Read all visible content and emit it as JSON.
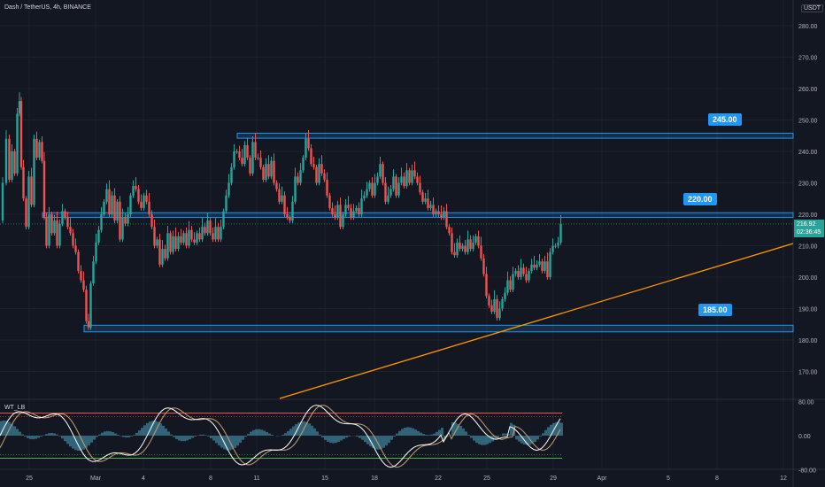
{
  "header": {
    "symbol": "Dash / TetherUS, 4h, BINANCE",
    "currency": "USDT",
    "indicator": "WT_LB"
  },
  "levels": {
    "l245": "245.00",
    "l220": "220.00",
    "l185": "185.00"
  },
  "current_price": {
    "value": "216.92",
    "countdown": "02:36:45"
  },
  "colors": {
    "background": "#131722",
    "up": "#26a69a",
    "down": "#ef5350",
    "zone": "#2196f3",
    "trendline": "#ff9800",
    "wt_line1": "#ffffff",
    "wt_line2": "#c8a070",
    "wt_hist": "#5bc0de"
  },
  "chart_data": {
    "type": "candlestick",
    "price_axis_ticks": [
      "280.00",
      "270.00",
      "260.00",
      "250.00",
      "240.00",
      "230.00",
      "220.00",
      "210.00",
      "200.00",
      "190.00",
      "180.00",
      "170.00"
    ],
    "osc_axis_ticks": [
      "80.00",
      "0.00",
      "-80.00"
    ],
    "time_axis_ticks": [
      "25",
      "Mar",
      "4",
      "8",
      "11",
      "15",
      "18",
      "22",
      "25",
      "29",
      "Apr",
      "5",
      "8",
      "12"
    ],
    "ylim": [
      162,
      284
    ],
    "levels": [
      245,
      220,
      185
    ],
    "trendline": "rising support line from the oscillator top-left to the right edge near 210",
    "close_path": [
      [
        0,
        218
      ],
      [
        4,
        230
      ],
      [
        8,
        244
      ],
      [
        11,
        231
      ],
      [
        14,
        240
      ],
      [
        17,
        233
      ],
      [
        20,
        252
      ],
      [
        22,
        256
      ],
      [
        24,
        235
      ],
      [
        27,
        225
      ],
      [
        30,
        216
      ],
      [
        33,
        232
      ],
      [
        36,
        223
      ],
      [
        39,
        244
      ],
      [
        42,
        238
      ],
      [
        45,
        243
      ],
      [
        48,
        237
      ],
      [
        50,
        219
      ],
      [
        53,
        210
      ],
      [
        56,
        220
      ],
      [
        59,
        214
      ],
      [
        62,
        218
      ],
      [
        65,
        210
      ],
      [
        68,
        217
      ],
      [
        71,
        221
      ],
      [
        74,
        219
      ],
      [
        77,
        216
      ],
      [
        80,
        214
      ],
      [
        83,
        210
      ],
      [
        86,
        208
      ],
      [
        89,
        202
      ],
      [
        92,
        199
      ],
      [
        95,
        196
      ],
      [
        98,
        186
      ],
      [
        100,
        184
      ],
      [
        103,
        198
      ],
      [
        106,
        205
      ],
      [
        109,
        211
      ],
      [
        112,
        215
      ],
      [
        115,
        220
      ],
      [
        118,
        224
      ],
      [
        121,
        228
      ],
      [
        124,
        220
      ],
      [
        127,
        226
      ],
      [
        130,
        218
      ],
      [
        133,
        224
      ],
      [
        136,
        212
      ],
      [
        139,
        219
      ],
      [
        142,
        217
      ],
      [
        145,
        220
      ],
      [
        148,
        226
      ],
      [
        151,
        229
      ],
      [
        154,
        228
      ],
      [
        157,
        224
      ],
      [
        160,
        222
      ],
      [
        163,
        226
      ],
      [
        166,
        224
      ],
      [
        169,
        220
      ],
      [
        172,
        216
      ],
      [
        175,
        210
      ],
      [
        178,
        212
      ],
      [
        181,
        204
      ],
      [
        184,
        209
      ],
      [
        187,
        206
      ],
      [
        190,
        214
      ],
      [
        193,
        208
      ],
      [
        196,
        213
      ],
      [
        199,
        209
      ],
      [
        202,
        213
      ],
      [
        205,
        211
      ],
      [
        208,
        214
      ],
      [
        211,
        210
      ],
      [
        214,
        215
      ],
      [
        217,
        212
      ],
      [
        220,
        211
      ],
      [
        223,
        214
      ],
      [
        226,
        212
      ],
      [
        229,
        216
      ],
      [
        232,
        214
      ],
      [
        235,
        218
      ],
      [
        238,
        214
      ],
      [
        241,
        212
      ],
      [
        244,
        216
      ],
      [
        247,
        212
      ],
      [
        250,
        216
      ],
      [
        253,
        221
      ],
      [
        256,
        226
      ],
      [
        259,
        230
      ],
      [
        262,
        235
      ],
      [
        265,
        240
      ],
      [
        268,
        240
      ],
      [
        271,
        238
      ],
      [
        274,
        236
      ],
      [
        277,
        242
      ],
      [
        280,
        238
      ],
      [
        283,
        233
      ],
      [
        286,
        243
      ],
      [
        289,
        238
      ],
      [
        292,
        238
      ],
      [
        295,
        235
      ],
      [
        298,
        231
      ],
      [
        301,
        236
      ],
      [
        304,
        232
      ],
      [
        307,
        237
      ],
      [
        310,
        230
      ],
      [
        313,
        228
      ],
      [
        316,
        224
      ],
      [
        319,
        226
      ],
      [
        322,
        220
      ],
      [
        325,
        219
      ],
      [
        328,
        218
      ],
      [
        331,
        224
      ],
      [
        334,
        232
      ],
      [
        337,
        230
      ],
      [
        340,
        234
      ],
      [
        343,
        238
      ],
      [
        346,
        244
      ],
      [
        349,
        241
      ],
      [
        352,
        236
      ],
      [
        355,
        235
      ],
      [
        358,
        230
      ],
      [
        361,
        236
      ],
      [
        364,
        233
      ],
      [
        367,
        231
      ],
      [
        370,
        226
      ],
      [
        373,
        222
      ],
      [
        376,
        220
      ],
      [
        379,
        219
      ],
      [
        382,
        223
      ],
      [
        385,
        216
      ],
      [
        388,
        220
      ],
      [
        391,
        223
      ],
      [
        394,
        222
      ],
      [
        397,
        219
      ],
      [
        400,
        221
      ],
      [
        403,
        222
      ],
      [
        406,
        220
      ],
      [
        409,
        225
      ],
      [
        412,
        226
      ],
      [
        415,
        228
      ],
      [
        418,
        230
      ],
      [
        421,
        226
      ],
      [
        424,
        230
      ],
      [
        427,
        232
      ],
      [
        430,
        236
      ],
      [
        433,
        230
      ],
      [
        436,
        224
      ],
      [
        439,
        226
      ],
      [
        442,
        228
      ],
      [
        445,
        232
      ],
      [
        448,
        226
      ],
      [
        451,
        230
      ],
      [
        454,
        232
      ],
      [
        457,
        229
      ],
      [
        460,
        234
      ],
      [
        463,
        230
      ],
      [
        466,
        234
      ],
      [
        469,
        232
      ],
      [
        472,
        230
      ],
      [
        475,
        227
      ],
      [
        478,
        224
      ],
      [
        481,
        225
      ],
      [
        484,
        222
      ],
      [
        487,
        223
      ],
      [
        490,
        220
      ],
      [
        493,
        221
      ],
      [
        496,
        220
      ],
      [
        499,
        219
      ],
      [
        502,
        221
      ],
      [
        505,
        216
      ],
      [
        508,
        214
      ],
      [
        511,
        208
      ],
      [
        514,
        207
      ],
      [
        517,
        211
      ],
      [
        520,
        209
      ],
      [
        523,
        210
      ],
      [
        526,
        208
      ],
      [
        529,
        212
      ],
      [
        532,
        209
      ],
      [
        535,
        211
      ],
      [
        538,
        213
      ],
      [
        541,
        210
      ],
      [
        544,
        206
      ],
      [
        547,
        201
      ],
      [
        550,
        194
      ],
      [
        553,
        191
      ],
      [
        556,
        189
      ],
      [
        559,
        193
      ],
      [
        562,
        187
      ],
      [
        565,
        190
      ],
      [
        568,
        193
      ],
      [
        571,
        195
      ],
      [
        574,
        199
      ],
      [
        577,
        196
      ],
      [
        580,
        201
      ],
      [
        583,
        202
      ],
      [
        586,
        200
      ],
      [
        589,
        203
      ],
      [
        592,
        201
      ],
      [
        595,
        199
      ],
      [
        598,
        202
      ],
      [
        601,
        204
      ],
      [
        604,
        203
      ],
      [
        607,
        204
      ],
      [
        610,
        205
      ],
      [
        613,
        202
      ],
      [
        616,
        205
      ],
      [
        619,
        200
      ],
      [
        622,
        208
      ],
      [
        625,
        210
      ],
      [
        628,
        210
      ],
      [
        631,
        211
      ],
      [
        634,
        217
      ]
    ]
  }
}
